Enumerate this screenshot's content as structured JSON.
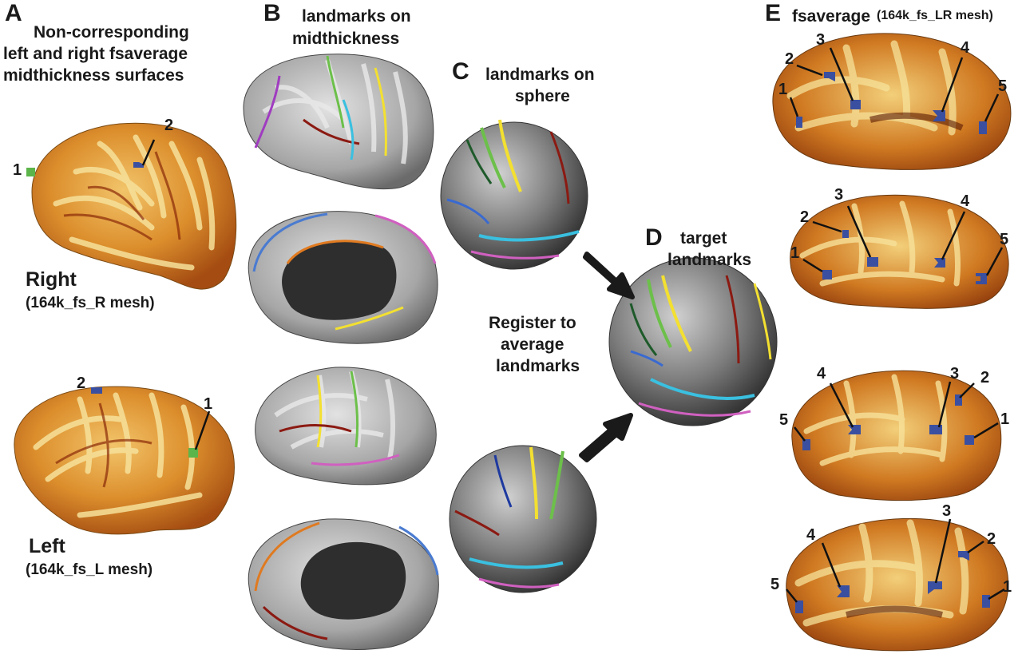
{
  "panels": {
    "A": {
      "letter": "A",
      "title_lines": [
        "Non-corresponding",
        "left and right fsaverage",
        "midthickness surfaces"
      ],
      "right_label": "Right",
      "right_mesh": "(164k_fs_R mesh)",
      "left_label": "Left",
      "left_mesh": "(164k_fs_L mesh)",
      "right_markers": [
        "1",
        "2"
      ],
      "left_markers": [
        "2",
        "1"
      ]
    },
    "B": {
      "letter": "B",
      "title_lines": [
        "landmarks on",
        "midthickness"
      ]
    },
    "C": {
      "letter": "C",
      "title_lines": [
        "landmarks on",
        "sphere"
      ],
      "register_lines": [
        "Register to",
        "average",
        "landmarks"
      ]
    },
    "D": {
      "letter": "D",
      "title_lines": [
        "target",
        "landmarks"
      ]
    },
    "E": {
      "letter": "E",
      "title": "fsaverage",
      "title_suffix": "(164k_fs_LR mesh)",
      "brain1_labels": [
        "1",
        "2",
        "3",
        "4",
        "5"
      ],
      "brain2_labels": [
        "1",
        "2",
        "3",
        "4",
        "5"
      ],
      "brain3_labels": [
        "5",
        "4",
        "3",
        "2",
        "1"
      ],
      "brain4_labels": [
        "5",
        "4",
        "3",
        "2",
        "1"
      ]
    }
  },
  "colors": {
    "brain_base": "#d98a2b",
    "brain_light": "#f4de8e",
    "brain_dark": "#8a2a08",
    "mesh_grey": "#9a9a9a",
    "sphere": "#6e6e6e",
    "marker_blue": "#3a4fa0",
    "marker_green": "#5cb54a",
    "arrow": "#1a1a1a"
  }
}
